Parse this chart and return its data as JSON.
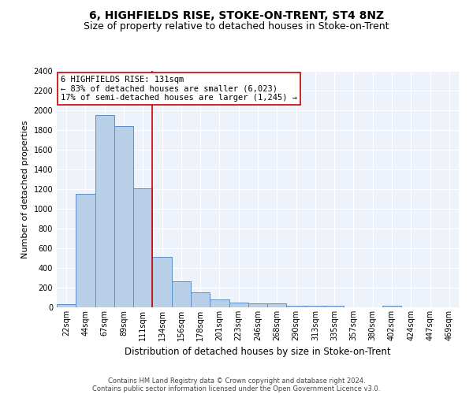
{
  "title1": "6, HIGHFIELDS RISE, STOKE-ON-TRENT, ST4 8NZ",
  "title2": "Size of property relative to detached houses in Stoke-on-Trent",
  "xlabel": "Distribution of detached houses by size in Stoke-on-Trent",
  "ylabel": "Number of detached properties",
  "categories": [
    "22sqm",
    "44sqm",
    "67sqm",
    "89sqm",
    "111sqm",
    "134sqm",
    "156sqm",
    "178sqm",
    "201sqm",
    "223sqm",
    "246sqm",
    "268sqm",
    "290sqm",
    "313sqm",
    "335sqm",
    "357sqm",
    "380sqm",
    "402sqm",
    "424sqm",
    "447sqm",
    "469sqm"
  ],
  "values": [
    30,
    1150,
    1950,
    1840,
    1210,
    510,
    265,
    155,
    80,
    50,
    43,
    43,
    20,
    20,
    15,
    0,
    0,
    20,
    0,
    0,
    0
  ],
  "bar_color": "#b8cfe8",
  "bar_edge_color": "#5b8dc8",
  "vline_x_index": 4,
  "vline_color": "#cc0000",
  "annotation_line1": "6 HIGHFIELDS RISE: 131sqm",
  "annotation_line2": "← 83% of detached houses are smaller (6,023)",
  "annotation_line3": "17% of semi-detached houses are larger (1,245) →",
  "annotation_box_color": "white",
  "annotation_box_edge_color": "#cc0000",
  "footer1": "Contains HM Land Registry data © Crown copyright and database right 2024.",
  "footer2": "Contains public sector information licensed under the Open Government Licence v3.0.",
  "ylim": [
    0,
    2400
  ],
  "yticks": [
    0,
    200,
    400,
    600,
    800,
    1000,
    1200,
    1400,
    1600,
    1800,
    2000,
    2200,
    2400
  ],
  "background_color": "#edf2fb",
  "title1_fontsize": 10,
  "title2_fontsize": 9,
  "ylabel_fontsize": 8,
  "xlabel_fontsize": 8.5,
  "tick_fontsize": 7,
  "annotation_fontsize": 7.5,
  "footer_fontsize": 6
}
